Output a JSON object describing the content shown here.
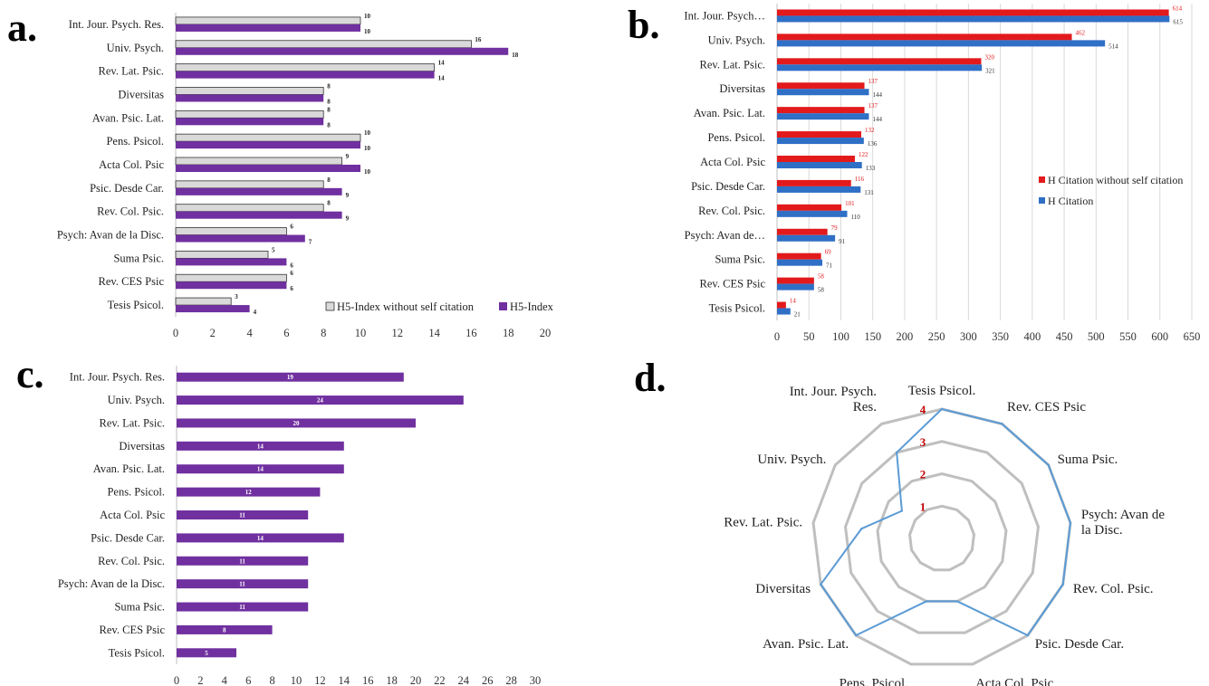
{
  "panels": {
    "a": {
      "letter": "a.",
      "chart_data": {
        "type": "bar",
        "orientation": "horizontal",
        "categories": [
          "Int. Jour. Psych. Res.",
          "Univ. Psych.",
          "Rev. Lat. Psic.",
          "Diversitas",
          "Avan. Psic. Lat.",
          "Pens. Psicol.",
          "Acta Col. Psic",
          "Psic. Desde Car.",
          "Rev. Col. Psic.",
          "Psych: Avan de la Disc.",
          "Suma Psic.",
          "Rev. CES Psic",
          "Tesis Psicol."
        ],
        "series": [
          {
            "name": "H5-Index without self citation",
            "color": "#d9d9d9",
            "values": [
              10,
              16,
              14,
              8,
              8,
              10,
              9,
              8,
              8,
              6,
              5,
              6,
              3
            ]
          },
          {
            "name": "H5-Index",
            "color": "#7030a0",
            "values": [
              10,
              18,
              14,
              8,
              8,
              10,
              10,
              9,
              9,
              7,
              6,
              6,
              4
            ]
          }
        ],
        "xticks": [
          "0",
          "2",
          "4",
          "6",
          "8",
          "10",
          "12",
          "14",
          "16",
          "18",
          "20"
        ],
        "xlim": [
          0,
          20
        ],
        "legend": "bottom-right"
      }
    },
    "b": {
      "letter": "b.",
      "chart_data": {
        "type": "bar",
        "orientation": "horizontal",
        "categories": [
          "Int. Jour. Psych…",
          "Univ. Psych.",
          "Rev. Lat. Psic.",
          "Diversitas",
          "Avan. Psic. Lat.",
          "Pens. Psicol.",
          "Acta Col. Psic",
          "Psic. Desde Car.",
          "Rev. Col. Psic.",
          "Psych: Avan de…",
          "Suma Psic.",
          "Rev. CES Psic",
          "Tesis Psicol."
        ],
        "series": [
          {
            "name": "H Citation without self citation",
            "color": "#e31a1c",
            "values": [
              614,
              462,
              320,
              137,
              137,
              132,
              122,
              116,
              101,
              79,
              69,
              58,
              14
            ]
          },
          {
            "name": "H Citation",
            "color": "#2f6fc6",
            "values": [
              615,
              514,
              321,
              144,
              144,
              136,
              133,
              131,
              110,
              91,
              71,
              58,
              21
            ]
          }
        ],
        "xticks": [
          "0",
          "50",
          "100",
          "150",
          "200",
          "250",
          "300",
          "350",
          "400",
          "450",
          "500",
          "550",
          "600",
          "650"
        ],
        "xlim": [
          0,
          650
        ],
        "legend": "right"
      }
    },
    "c": {
      "letter": "c.",
      "chart_data": {
        "type": "bar",
        "orientation": "horizontal",
        "categories": [
          "Int. Jour. Psych. Res.",
          "Univ. Psych.",
          "Rev. Lat. Psic.",
          "Diversitas",
          "Avan. Psic. Lat.",
          "Pens. Psicol.",
          "Acta Col. Psic",
          "Psic. Desde Car.",
          "Rev. Col. Psic.",
          "Psych: Avan de la Disc.",
          "Suma Psic.",
          "Rev. CES Psic",
          "Tesis Psicol."
        ],
        "series": [
          {
            "color": "#7030a0",
            "values": [
              19,
              24,
              20,
              14,
              14,
              12,
              11,
              14,
              11,
              11,
              11,
              8,
              5
            ]
          }
        ],
        "xticks": [
          "0",
          "2",
          "4",
          "6",
          "8",
          "10",
          "12",
          "14",
          "16",
          "18",
          "20",
          "22",
          "24",
          "26",
          "28",
          "30"
        ],
        "xlim": [
          0,
          30
        ]
      }
    },
    "d": {
      "letter": "d.",
      "chart_data": {
        "type": "radar",
        "axes": [
          "Tesis Psicol.",
          "Rev. CES Psic",
          "Suma Psic.",
          "Psych: Avan de la Disc.",
          "Rev. Col. Psic.",
          "Psic. Desde Car.",
          "Acta Col. Psic",
          "Pens. Psicol.",
          "Avan. Psic. Lat.",
          "Diversitas",
          "Rev. Lat. Psic.",
          "Univ. Psych.",
          "Int. Jour. Psych. Res."
        ],
        "axis_label_lines": [
          [
            "Tesis Psicol."
          ],
          [
            "Rev. CES Psic"
          ],
          [
            "Suma Psic."
          ],
          [
            "Psych: Avan de",
            "la Disc."
          ],
          [
            "Rev. Col. Psic."
          ],
          [
            "Psic. Desde Car."
          ],
          [
            "Acta Col. Psic"
          ],
          [
            "Pens. Psicol."
          ],
          [
            "Avan. Psic. Lat."
          ],
          [
            "Diversitas"
          ],
          [
            "Rev. Lat. Psic."
          ],
          [
            "Univ. Psych."
          ],
          [
            "Int. Jour. Psych.",
            "Res."
          ]
        ],
        "values": [
          4,
          4,
          4,
          4,
          4,
          4,
          2,
          2,
          4,
          4,
          2.5,
          1.5,
          3
        ],
        "rings": [
          1,
          2,
          3,
          4
        ],
        "ring_labels": [
          "1",
          "2",
          "3",
          "4"
        ],
        "series_color": "#5b9bd5",
        "grid_color": "#bfbfbf",
        "ring_label_color": "#c00000"
      }
    }
  }
}
